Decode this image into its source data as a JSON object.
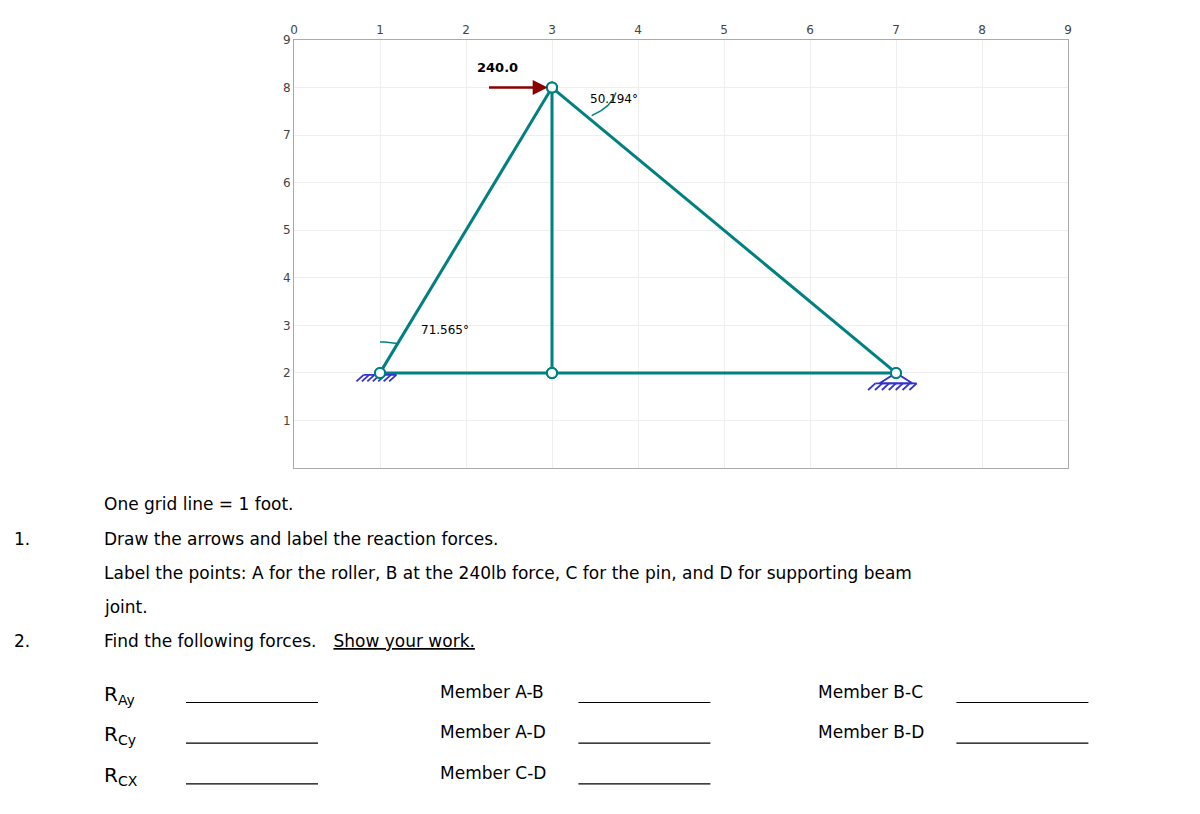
{
  "chart_data": {
    "type": "line",
    "color": "#008080",
    "marker": "circle",
    "grid": true,
    "xlim": [
      0,
      9
    ],
    "ylim": [
      0,
      9
    ],
    "xticks": [
      0,
      1,
      2,
      3,
      4,
      5,
      6,
      7,
      8,
      9
    ],
    "yticks": [
      1,
      2,
      3,
      4,
      5,
      6,
      7,
      8,
      9
    ],
    "series": [
      {
        "x": [
          1,
          3
        ],
        "values": [
          2,
          8
        ]
      },
      {
        "x": [
          3,
          7
        ],
        "values": [
          8,
          2
        ]
      },
      {
        "x": [
          3,
          3
        ],
        "values": [
          8,
          2
        ]
      },
      {
        "x": [
          1,
          3
        ],
        "values": [
          2,
          2
        ]
      },
      {
        "x": [
          3,
          7
        ],
        "values": [
          2,
          2
        ]
      }
    ],
    "force": {
      "label": "240.0",
      "from": [
        2.25,
        8.0
      ],
      "to": [
        2.95,
        8.0
      ],
      "label_x": 2.1,
      "label_y": 8.22,
      "color": "#8b0000"
    },
    "angles": [
      {
        "text": "71.565°",
        "x": 1.45,
        "y": 2.72,
        "center": [
          1,
          2
        ],
        "radius": 0.65,
        "from": 72,
        "to": 90
      },
      {
        "text": "50.194°",
        "x": 3.42,
        "y": 7.58,
        "center": [
          3,
          8
        ],
        "radius": 0.75,
        "from": -52,
        "to": -8
      }
    ],
    "supports": [
      {
        "kind": "roller",
        "x": 1,
        "y": 2,
        "color": "#3333cc"
      },
      {
        "kind": "pin",
        "x": 7,
        "y": 2,
        "color": "#3333cc"
      }
    ],
    "notes": [
      {
        "text": "One grid line = 1 foot."
      },
      {
        "number": "1.",
        "text": "Draw the arrows and label the reaction forces."
      },
      {
        "text": "Label the points: A for the roller, B at the 240lb force, C for the pin, and D for supporting beam"
      },
      {
        "text": "joint."
      },
      {
        "number": "2.",
        "text": "Find the following forces.  ",
        "underlined": "Show your work."
      }
    ],
    "fields": [
      [
        {
          "label": "R",
          "sub": "Ay"
        },
        {
          "label": "Member A-B"
        },
        {
          "label": "Member B-C"
        }
      ],
      [
        {
          "label": "R",
          "sub": "Cy"
        },
        {
          "label": "Member A-D"
        },
        {
          "label": "Member B-D"
        }
      ],
      [
        {
          "label": "R",
          "sub": "CX"
        },
        {
          "label": "Member C-D"
        }
      ]
    ]
  }
}
